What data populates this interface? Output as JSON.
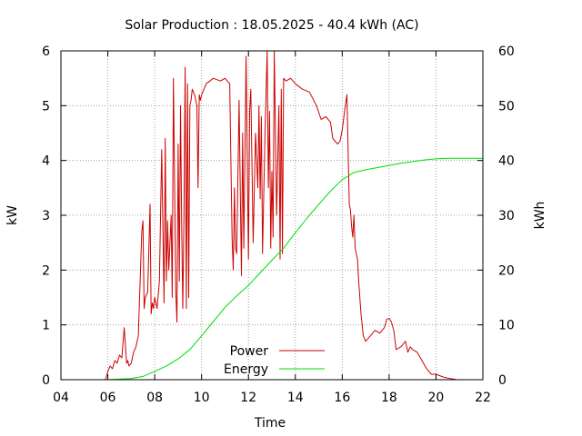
{
  "chart_data": {
    "type": "line",
    "title": "Solar Production : 18.05.2025 - 40.4 kWh (AC)",
    "xlabel": "Time",
    "ylabel": "kW",
    "y2label": "kWh",
    "xlim": [
      4,
      22
    ],
    "ylim": [
      0,
      6
    ],
    "y2lim": [
      0,
      60
    ],
    "x_ticks": [
      4,
      6,
      8,
      10,
      12,
      14,
      16,
      18,
      20,
      22
    ],
    "x_tick_labels": [
      "04",
      "06",
      "08",
      "10",
      "12",
      "14",
      "16",
      "18",
      "20",
      "22"
    ],
    "y_ticks": [
      0,
      1,
      2,
      3,
      4,
      5,
      6
    ],
    "y2_ticks": [
      0,
      10,
      20,
      30,
      40,
      50,
      60
    ],
    "grid": true,
    "legend_position": "bottom-center",
    "colors": {
      "Power": "#cc0000",
      "Energy": "#00dd00"
    },
    "series": [
      {
        "name": "Power",
        "axis": "left",
        "x": [
          5.9,
          6.0,
          6.1,
          6.2,
          6.3,
          6.4,
          6.5,
          6.6,
          6.7,
          6.8,
          6.85,
          6.9,
          7.0,
          7.1,
          7.2,
          7.3,
          7.45,
          7.5,
          7.55,
          7.6,
          7.7,
          7.8,
          7.85,
          7.9,
          7.95,
          8.0,
          8.1,
          8.2,
          8.3,
          8.4,
          8.45,
          8.5,
          8.55,
          8.6,
          8.7,
          8.75,
          8.8,
          8.9,
          8.95,
          9.0,
          9.05,
          9.1,
          9.15,
          9.2,
          9.25,
          9.3,
          9.35,
          9.4,
          9.45,
          9.5,
          9.55,
          9.6,
          9.7,
          9.8,
          9.85,
          9.9,
          9.95,
          10.0,
          10.2,
          10.5,
          10.8,
          11.0,
          11.2,
          11.3,
          11.35,
          11.4,
          11.45,
          11.5,
          11.6,
          11.7,
          11.75,
          11.8,
          11.9,
          12.0,
          12.05,
          12.1,
          12.2,
          12.3,
          12.4,
          12.45,
          12.5,
          12.55,
          12.6,
          12.7,
          12.8,
          12.85,
          12.9,
          12.95,
          13.0,
          13.05,
          13.1,
          13.2,
          13.3,
          13.35,
          13.4,
          13.45,
          13.5,
          13.6,
          13.8,
          14.0,
          14.3,
          14.6,
          14.9,
          15.1,
          15.3,
          15.5,
          15.6,
          15.8,
          15.9,
          16.0,
          16.1,
          16.2,
          16.3,
          16.35,
          16.4,
          16.45,
          16.5,
          16.55,
          16.6,
          16.65,
          16.7,
          16.8,
          16.9,
          17.0,
          17.2,
          17.4,
          17.6,
          17.8,
          17.9,
          18.0,
          18.1,
          18.2,
          18.3,
          18.5,
          18.7,
          18.8,
          18.9,
          19.0,
          19.2,
          19.4,
          19.6,
          19.8,
          20.0,
          20.3,
          20.6,
          20.9,
          21.2,
          21.4
        ],
        "values": [
          0.0,
          0.15,
          0.25,
          0.2,
          0.35,
          0.3,
          0.45,
          0.4,
          0.95,
          0.3,
          0.35,
          0.25,
          0.3,
          0.5,
          0.6,
          0.8,
          2.7,
          2.9,
          1.3,
          1.5,
          1.6,
          3.2,
          1.2,
          1.4,
          1.3,
          1.5,
          1.3,
          1.8,
          4.2,
          1.4,
          4.4,
          1.8,
          2.9,
          2.0,
          3.0,
          1.5,
          5.5,
          1.6,
          1.05,
          4.3,
          1.8,
          5.0,
          2.8,
          1.3,
          3.0,
          5.7,
          1.3,
          5.4,
          1.5,
          5.0,
          5.1,
          5.3,
          5.2,
          5.0,
          3.5,
          5.2,
          5.1,
          5.2,
          5.4,
          5.5,
          5.45,
          5.5,
          5.4,
          2.6,
          2.0,
          3.5,
          2.4,
          2.3,
          5.1,
          1.9,
          4.5,
          2.4,
          5.9,
          2.2,
          4.9,
          5.3,
          2.5,
          4.5,
          3.5,
          5.0,
          3.3,
          4.8,
          2.3,
          4.4,
          6.0,
          3.5,
          4.9,
          2.4,
          3.8,
          2.6,
          6.0,
          3.0,
          5.0,
          2.2,
          5.3,
          2.3,
          5.5,
          5.45,
          5.5,
          5.4,
          5.3,
          5.25,
          5.0,
          4.75,
          4.8,
          4.7,
          4.4,
          4.3,
          4.35,
          4.55,
          4.9,
          5.2,
          3.2,
          3.1,
          2.8,
          2.6,
          3.0,
          2.4,
          2.3,
          2.2,
          1.8,
          1.2,
          0.8,
          0.7,
          0.8,
          0.9,
          0.85,
          0.95,
          1.1,
          1.12,
          1.05,
          0.9,
          0.55,
          0.6,
          0.7,
          0.5,
          0.6,
          0.55,
          0.5,
          0.35,
          0.2,
          0.1,
          0.1,
          0.05,
          0.02,
          0.0,
          0.0,
          0.0
        ]
      },
      {
        "name": "Energy",
        "axis": "right",
        "x": [
          6.0,
          6.5,
          7.0,
          7.5,
          8.0,
          8.5,
          9.0,
          9.5,
          10.0,
          10.5,
          11.0,
          11.5,
          12.0,
          12.5,
          13.0,
          13.5,
          14.0,
          14.5,
          15.0,
          15.5,
          16.0,
          16.5,
          17.0,
          17.5,
          18.0,
          18.5,
          19.0,
          19.5,
          20.0,
          20.5,
          21.0,
          21.5,
          22.0
        ],
        "values": [
          0.0,
          0.1,
          0.2,
          0.6,
          1.5,
          2.5,
          3.8,
          5.5,
          8.0,
          10.6,
          13.2,
          15.3,
          17.2,
          19.5,
          21.8,
          24.0,
          26.8,
          29.5,
          32.0,
          34.4,
          36.5,
          37.8,
          38.3,
          38.7,
          39.1,
          39.5,
          39.8,
          40.1,
          40.3,
          40.4,
          40.4,
          40.4,
          40.4
        ]
      }
    ]
  }
}
